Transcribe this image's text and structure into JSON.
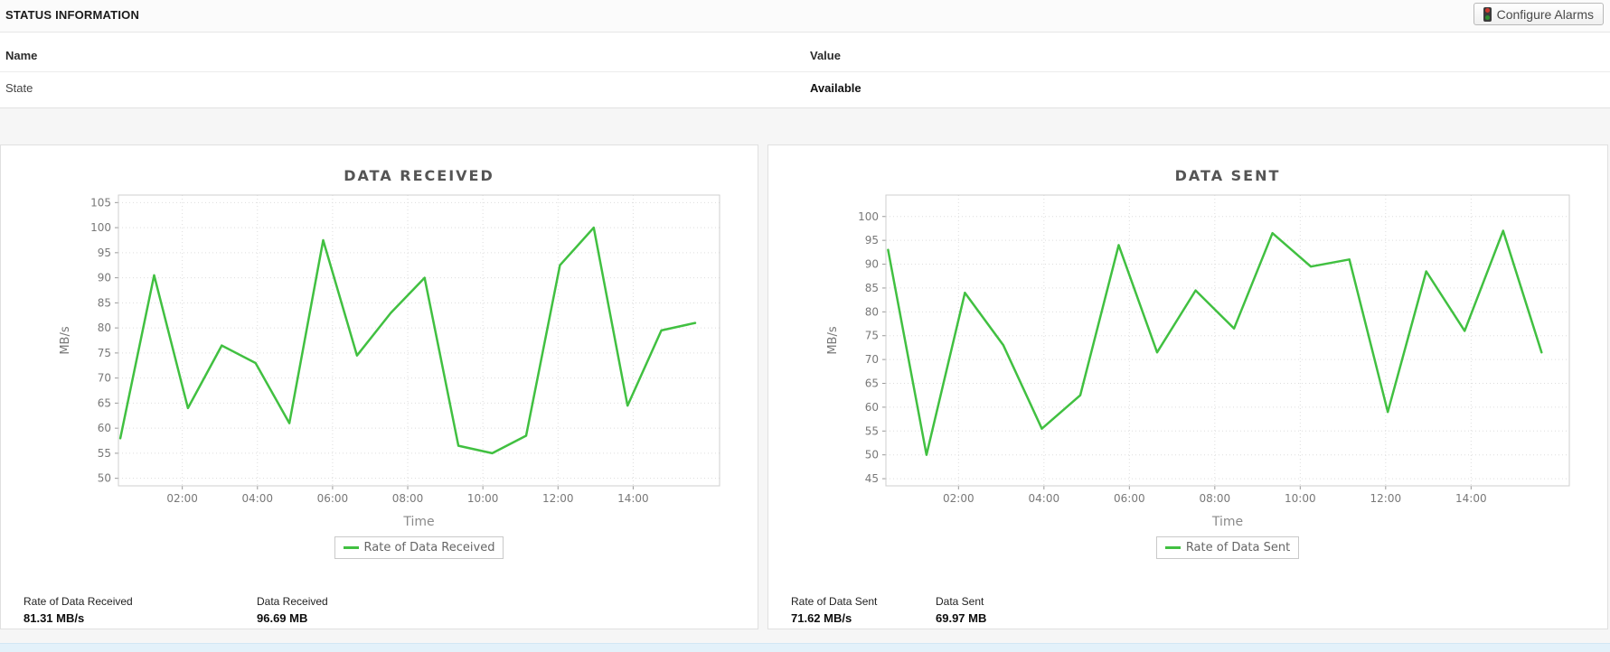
{
  "header": {
    "title": "STATUS INFORMATION",
    "configure_alarms_label": "Configure Alarms"
  },
  "status_table": {
    "columns": {
      "name": "Name",
      "value": "Value"
    },
    "rows": [
      {
        "name": "State",
        "value": "Available"
      }
    ]
  },
  "colors": {
    "line_green": "#41c041",
    "grid": "#dddddd",
    "plot_border": "#cfcfcf",
    "tick_text": "#787878",
    "highlight_row": "#e3f1fa"
  },
  "chart_data": [
    {
      "type": "line",
      "title": "DATA RECEIVED",
      "xlabel": "Time",
      "ylabel": "MB/s",
      "legend": "Rate of Data Received",
      "legend_position": "bottom",
      "grid": true,
      "line_color": "#41c041",
      "x_hours": [
        0.35,
        1.25,
        2.15,
        3.05,
        3.95,
        4.85,
        5.75,
        6.65,
        7.55,
        8.45,
        9.35,
        10.25,
        11.15,
        12.05,
        12.95,
        13.85,
        14.75,
        15.65
      ],
      "x_tick_hours": [
        2,
        4,
        6,
        8,
        10,
        12,
        14
      ],
      "x_tick_labels": [
        "02:00",
        "04:00",
        "06:00",
        "08:00",
        "10:00",
        "12:00",
        "14:00"
      ],
      "xlim": [
        0.3,
        16.3
      ],
      "ylim": [
        48.5,
        106.5
      ],
      "y_ticks": [
        50,
        55,
        60,
        65,
        70,
        75,
        80,
        85,
        90,
        95,
        100,
        105
      ],
      "series": [
        {
          "name": "Rate of Data Received",
          "values": [
            58,
            90.5,
            64,
            76.5,
            73,
            61,
            97.5,
            74.5,
            83,
            90,
            56.5,
            55,
            58.5,
            92.5,
            100,
            64.5,
            79.5,
            81
          ]
        }
      ],
      "stats": [
        {
          "label": "Rate of Data Received",
          "value": "81.31 MB/s"
        },
        {
          "label": "Data Received",
          "value": "96.69 MB"
        }
      ]
    },
    {
      "type": "line",
      "title": "DATA SENT",
      "xlabel": "Time",
      "ylabel": "MB/s",
      "legend": "Rate of Data Sent",
      "legend_position": "bottom",
      "grid": true,
      "line_color": "#41c041",
      "x_hours": [
        0.35,
        1.25,
        2.15,
        3.05,
        3.95,
        4.85,
        5.75,
        6.65,
        7.55,
        8.45,
        9.35,
        10.25,
        11.15,
        12.05,
        12.95,
        13.85,
        14.75,
        15.65
      ],
      "x_tick_hours": [
        2,
        4,
        6,
        8,
        10,
        12,
        14
      ],
      "x_tick_labels": [
        "02:00",
        "04:00",
        "06:00",
        "08:00",
        "10:00",
        "12:00",
        "14:00"
      ],
      "xlim": [
        0.3,
        16.3
      ],
      "ylim": [
        43.5,
        104.5
      ],
      "y_ticks": [
        45,
        50,
        55,
        60,
        65,
        70,
        75,
        80,
        85,
        90,
        95,
        100
      ],
      "series": [
        {
          "name": "Rate of Data Sent",
          "values": [
            93,
            50,
            84,
            73,
            55.5,
            62.5,
            94,
            71.5,
            84.5,
            76.5,
            96.5,
            89.5,
            91,
            59,
            88.5,
            76,
            97,
            71.5
          ]
        }
      ],
      "stats": [
        {
          "label": "Rate of Data Sent",
          "value": "71.62 MB/s"
        },
        {
          "label": "Data Sent",
          "value": "69.97 MB"
        }
      ]
    }
  ]
}
